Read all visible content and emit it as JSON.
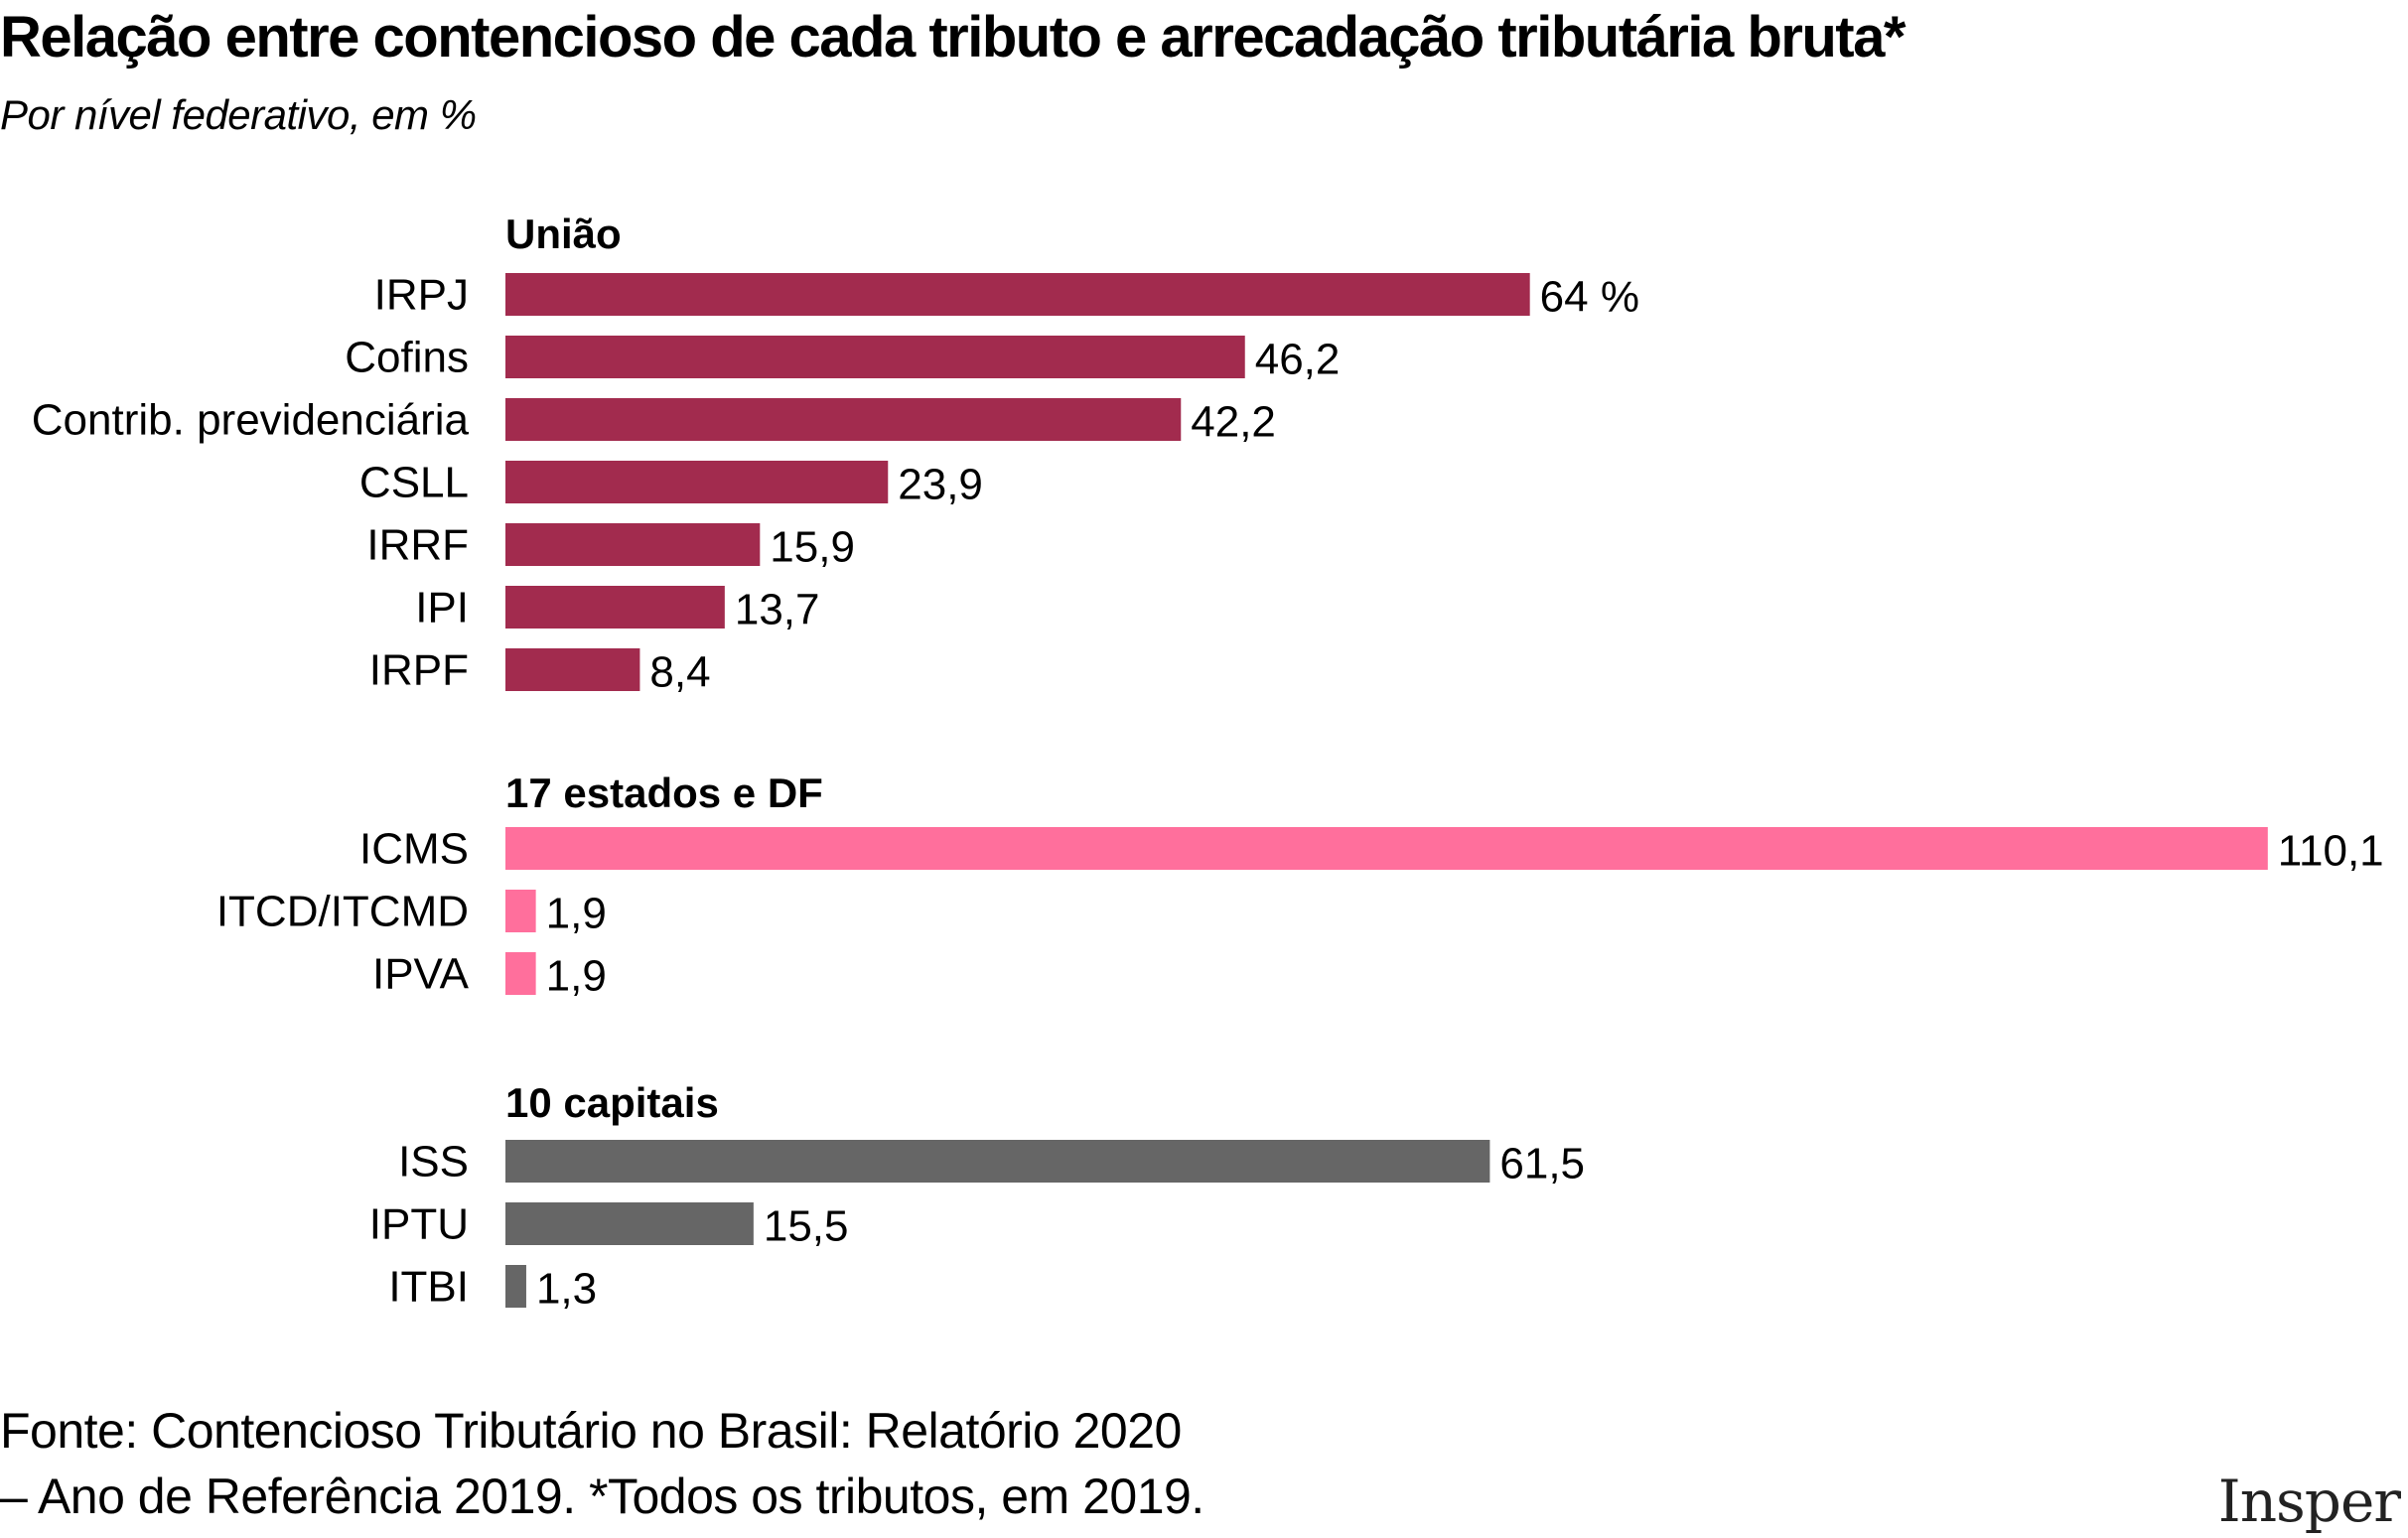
{
  "header": {
    "title": "Relação entre contencioso de cada tributo e arrecadação tributária bruta*",
    "subtitle": "Por nível federativo, em %"
  },
  "footer": {
    "source_line1": "Fonte: Contencioso Tributário no Brasil: Relatório 2020",
    "source_line2": "– Ano de Referência 2019. *Todos os tributos, em 2019.",
    "logo": "Insper"
  },
  "chart_data": {
    "type": "bar",
    "orientation": "horizontal",
    "title": "Relação entre contencioso de cada tributo e arrecadação tributária bruta*",
    "subtitle": "Por nível federativo, em %",
    "xlabel": "",
    "ylabel": "",
    "unit": "%",
    "grid": false,
    "xlim": [
      0,
      110.1
    ],
    "groups": [
      {
        "name": "União",
        "color": "#A22B4E",
        "categories": [
          "IRPJ",
          "Cofins",
          "Contrib. previdenciária",
          "CSLL",
          "IRRF",
          "IPI",
          "IRPF"
        ],
        "values": [
          64,
          46.2,
          42.2,
          23.9,
          15.9,
          13.7,
          8.4
        ],
        "value_labels": [
          "64 %",
          "46,2",
          "42,2",
          "23,9",
          "15,9",
          "13,7",
          "8,4"
        ]
      },
      {
        "name": "17 estados e DF",
        "color": "#FF6F9C",
        "categories": [
          "ICMS",
          "ITCD/ITCMD",
          "IPVA"
        ],
        "values": [
          110.1,
          1.9,
          1.9
        ],
        "value_labels": [
          "110,1",
          "1,9",
          "1,9"
        ]
      },
      {
        "name": "10 capitais",
        "color": "#666666",
        "categories": [
          "ISS",
          "IPTU",
          "ITBI"
        ],
        "values": [
          61.5,
          15.5,
          1.3
        ],
        "value_labels": [
          "61,5",
          "15,5",
          "1,3"
        ]
      }
    ],
    "source": "Fonte: Contencioso Tributário no Brasil: Relatório 2020 – Ano de Referência 2019. *Todos os tributos, em 2019."
  }
}
